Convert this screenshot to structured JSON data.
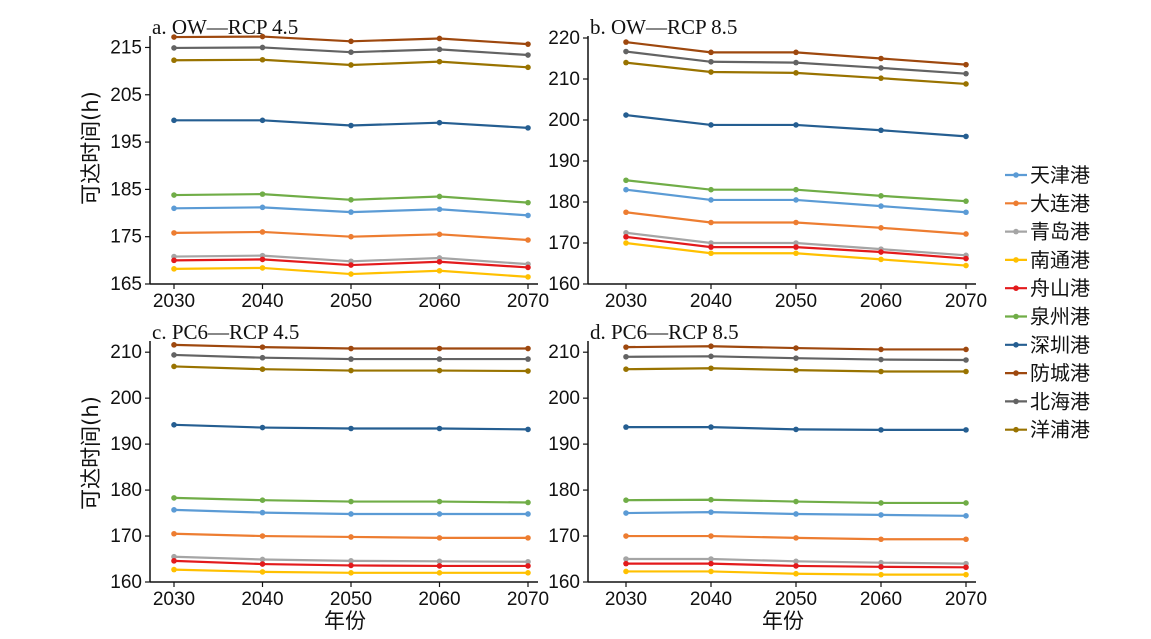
{
  "ylabel": "可达时间(h)",
  "xlabel": "年份",
  "legend": [
    {
      "name": "天津港",
      "color": "#5b9bd5"
    },
    {
      "name": "大连港",
      "color": "#ed7d31"
    },
    {
      "name": "青岛港",
      "color": "#a5a5a5"
    },
    {
      "name": "南通港",
      "color": "#ffc000"
    },
    {
      "name": "舟山港",
      "color": "#e31a1c"
    },
    {
      "name": "泉州港",
      "color": "#70ad47"
    },
    {
      "name": "深圳港",
      "color": "#255e91"
    },
    {
      "name": "防城港",
      "color": "#9e480e"
    },
    {
      "name": "北海港",
      "color": "#636363"
    },
    {
      "name": "洋浦港",
      "color": "#997300"
    }
  ],
  "chart_data": [
    {
      "type": "line",
      "title": "a. OW—RCP 4.5",
      "x": [
        2030,
        2040,
        2050,
        2060,
        2070
      ],
      "ylim": [
        165,
        217
      ],
      "yticks": [
        165,
        175,
        185,
        195,
        205,
        215
      ],
      "series": [
        {
          "name": "天津港",
          "values": [
            181,
            181.2,
            180.2,
            180.8,
            179.5
          ]
        },
        {
          "name": "大连港",
          "values": [
            175.8,
            176,
            175,
            175.5,
            174.3
          ]
        },
        {
          "name": "青岛港",
          "values": [
            170.8,
            171,
            169.8,
            170.5,
            169.2
          ]
        },
        {
          "name": "南通港",
          "values": [
            168.2,
            168.4,
            167.1,
            167.8,
            166.5
          ]
        },
        {
          "name": "舟山港",
          "values": [
            170,
            170.2,
            169,
            169.7,
            168.5
          ]
        },
        {
          "name": "泉州港",
          "values": [
            183.8,
            184,
            182.8,
            183.5,
            182.2
          ]
        },
        {
          "name": "深圳港",
          "values": [
            199.6,
            199.6,
            198.5,
            199.1,
            198
          ]
        },
        {
          "name": "防城港",
          "values": [
            217.2,
            217.3,
            216.3,
            216.9,
            215.7
          ]
        },
        {
          "name": "北海港",
          "values": [
            214.9,
            215,
            214,
            214.6,
            213.4
          ]
        },
        {
          "name": "洋浦港",
          "values": [
            212.3,
            212.4,
            211.3,
            212,
            210.8
          ]
        }
      ]
    },
    {
      "type": "line",
      "title": "b. OW—RCP 8.5",
      "x": [
        2030,
        2040,
        2050,
        2060,
        2070
      ],
      "ylim": [
        160,
        220
      ],
      "yticks": [
        160,
        170,
        180,
        190,
        200,
        210,
        220
      ],
      "series": [
        {
          "name": "天津港",
          "values": [
            183,
            180.5,
            180.5,
            179,
            177.5
          ]
        },
        {
          "name": "大连港",
          "values": [
            177.5,
            175,
            175,
            173.7,
            172.2
          ]
        },
        {
          "name": "青岛港",
          "values": [
            172.5,
            170,
            170,
            168.5,
            167
          ]
        },
        {
          "name": "南通港",
          "values": [
            170,
            167.5,
            167.5,
            166,
            164.5
          ]
        },
        {
          "name": "舟山港",
          "values": [
            171.5,
            169,
            169,
            167.8,
            166.2
          ]
        },
        {
          "name": "泉州港",
          "values": [
            185.3,
            183,
            183,
            181.5,
            180.2
          ]
        },
        {
          "name": "深圳港",
          "values": [
            201.2,
            198.8,
            198.8,
            197.5,
            196
          ]
        },
        {
          "name": "防城港",
          "values": [
            219,
            216.5,
            216.5,
            215,
            213.5
          ]
        },
        {
          "name": "北海港",
          "values": [
            216.7,
            214.2,
            214,
            212.7,
            211.3
          ]
        },
        {
          "name": "洋浦港",
          "values": [
            214,
            211.7,
            211.5,
            210.2,
            208.8
          ]
        }
      ]
    },
    {
      "type": "line",
      "title": "c. PC6—RCP 4.5",
      "x": [
        2030,
        2040,
        2050,
        2060,
        2070
      ],
      "ylim": [
        160,
        212
      ],
      "yticks": [
        160,
        170,
        180,
        190,
        200,
        210
      ],
      "series": [
        {
          "name": "天津港",
          "values": [
            175.7,
            175.1,
            174.8,
            174.8,
            174.8
          ]
        },
        {
          "name": "大连港",
          "values": [
            170.5,
            170,
            169.8,
            169.6,
            169.6
          ]
        },
        {
          "name": "青岛港",
          "values": [
            165.5,
            164.9,
            164.6,
            164.5,
            164.4
          ]
        },
        {
          "name": "南通港",
          "values": [
            162.7,
            162.2,
            162,
            162,
            162
          ]
        },
        {
          "name": "舟山港",
          "values": [
            164.6,
            163.9,
            163.6,
            163.5,
            163.5
          ]
        },
        {
          "name": "泉州港",
          "values": [
            178.3,
            177.8,
            177.5,
            177.5,
            177.3
          ]
        },
        {
          "name": "深圳港",
          "values": [
            194.2,
            193.6,
            193.4,
            193.4,
            193.2
          ]
        },
        {
          "name": "防城港",
          "values": [
            211.6,
            211.1,
            210.8,
            210.8,
            210.8
          ]
        },
        {
          "name": "北海港",
          "values": [
            209.4,
            208.8,
            208.5,
            208.5,
            208.5
          ]
        },
        {
          "name": "洋浦港",
          "values": [
            206.9,
            206.3,
            206,
            206,
            205.9
          ]
        }
      ]
    },
    {
      "type": "line",
      "title": "d. PC6—RCP 8.5",
      "x": [
        2030,
        2040,
        2050,
        2060,
        2070
      ],
      "ylim": [
        160,
        212
      ],
      "yticks": [
        160,
        170,
        180,
        190,
        200,
        210
      ],
      "series": [
        {
          "name": "天津港",
          "values": [
            175,
            175.2,
            174.8,
            174.6,
            174.4
          ]
        },
        {
          "name": "大连港",
          "values": [
            170,
            170,
            169.6,
            169.3,
            169.3
          ]
        },
        {
          "name": "青岛港",
          "values": [
            165,
            165,
            164.5,
            164.2,
            164
          ]
        },
        {
          "name": "南通港",
          "values": [
            162.3,
            162.3,
            161.8,
            161.6,
            161.6
          ]
        },
        {
          "name": "舟山港",
          "values": [
            164,
            164,
            163.5,
            163.3,
            163.2
          ]
        },
        {
          "name": "泉州港",
          "values": [
            177.8,
            177.9,
            177.5,
            177.2,
            177.2
          ]
        },
        {
          "name": "深圳港",
          "values": [
            193.7,
            193.7,
            193.2,
            193.1,
            193.1
          ]
        },
        {
          "name": "防城港",
          "values": [
            211.1,
            211.3,
            210.9,
            210.6,
            210.6
          ]
        },
        {
          "name": "北海港",
          "values": [
            209,
            209.1,
            208.7,
            208.4,
            208.3
          ]
        },
        {
          "name": "洋浦港",
          "values": [
            206.3,
            206.5,
            206.1,
            205.8,
            205.8
          ]
        }
      ]
    }
  ]
}
